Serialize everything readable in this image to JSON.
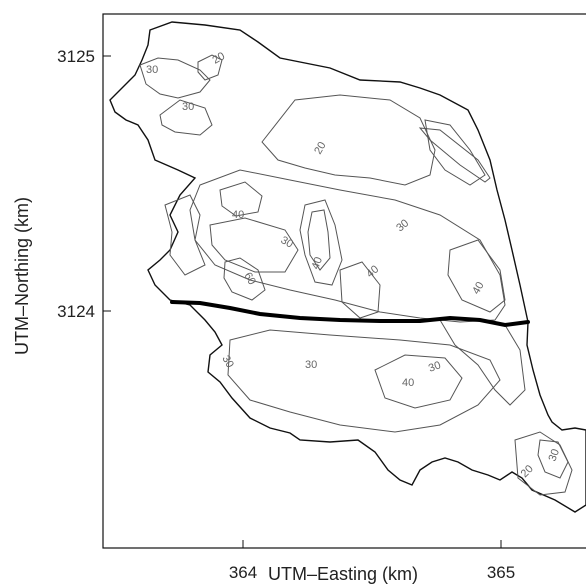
{
  "map": {
    "xlabel": "UTM–Easting (km)",
    "ylabel": "UTM–Northing (km)",
    "x_ticks": [
      {
        "value": 364,
        "label": "364"
      },
      {
        "value": 365,
        "label": "365"
      }
    ],
    "y_ticks": [
      {
        "value": 3125,
        "label": "3125"
      },
      {
        "value": 3124,
        "label": "3124"
      }
    ],
    "contour_labels": [
      "30",
      "20",
      "30",
      "20",
      "40",
      "30",
      "30",
      "40",
      "40",
      "40",
      "60",
      "30",
      "30",
      "40",
      "30",
      "20",
      "30"
    ],
    "colors": {
      "contour": "#555555",
      "boundary": "#111111",
      "profile": "#000000"
    }
  }
}
